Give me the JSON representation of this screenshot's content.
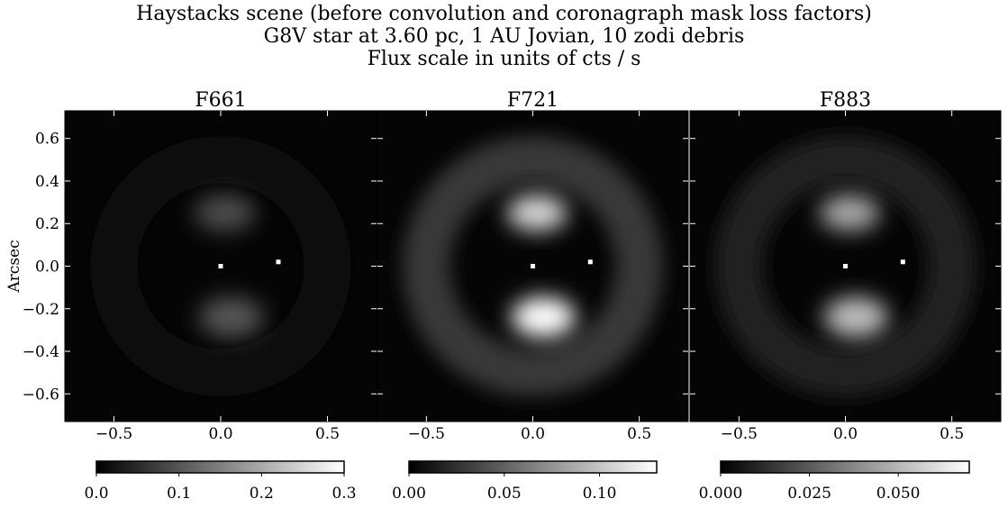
{
  "suptitle": {
    "line1": "Haystacks scene (before convolution and coronagraph mask loss factors)",
    "line2": "G8V star at 3.60 pc, 1 AU Jovian, 10 zodi debris",
    "line3": "Flux scale in units of cts / s"
  },
  "colors": {
    "colormap": [
      "#000000",
      "#ffffff"
    ],
    "axis": "#000000",
    "marker": "#ffffff"
  },
  "chart_data": [
    {
      "type": "heatmap",
      "title": "F661",
      "ylabel": "Arcsec",
      "xlim": [
        -0.73,
        0.73
      ],
      "ylim": [
        -0.73,
        0.73
      ],
      "xticks": [
        "−0.5",
        "0.0",
        "0.5"
      ],
      "xtick_values": [
        -0.5,
        0.0,
        0.5
      ],
      "yticks": [
        "−0.6",
        "−0.4",
        "−0.2",
        "0.0",
        "0.2",
        "0.4",
        "0.6"
      ],
      "ytick_values": [
        -0.6,
        -0.4,
        -0.2,
        0.0,
        0.2,
        0.4,
        0.6
      ],
      "sources": [
        {
          "name": "star",
          "x": 0.0,
          "y": 0.0
        },
        {
          "name": "planet",
          "x": 0.27,
          "y": 0.02
        }
      ],
      "features": {
        "upper_lobe_peak": 0.09,
        "lower_lobe_peak": 0.1,
        "ring_level": 0.01
      },
      "colorbar": {
        "range": [
          0.0,
          0.3
        ],
        "ticks": [
          "0.0",
          "0.1",
          "0.2",
          "0.3"
        ],
        "tick_values": [
          0.0,
          0.1,
          0.2,
          0.3
        ]
      }
    },
    {
      "type": "heatmap",
      "title": "F721",
      "xlim": [
        -0.73,
        0.73
      ],
      "ylim": [
        -0.73,
        0.73
      ],
      "xticks": [
        "−0.5",
        "0.0",
        "0.5"
      ],
      "xtick_values": [
        -0.5,
        0.0,
        0.5
      ],
      "sources": [
        {
          "name": "star",
          "x": 0.0,
          "y": 0.0
        },
        {
          "name": "planet",
          "x": 0.27,
          "y": 0.02
        }
      ],
      "features": {
        "upper_lobe_peak": 0.11,
        "lower_lobe_peak": 0.13,
        "ring_level": 0.028
      },
      "colorbar": {
        "range": [
          0.0,
          0.13
        ],
        "ticks": [
          "0.00",
          "0.05",
          "0.10"
        ],
        "tick_values": [
          0.0,
          0.05,
          0.1
        ]
      }
    },
    {
      "type": "heatmap",
      "title": "F883",
      "xlim": [
        -0.73,
        0.73
      ],
      "ylim": [
        -0.73,
        0.73
      ],
      "xticks": [
        "−0.5",
        "0.0",
        "0.5"
      ],
      "xtick_values": [
        -0.5,
        0.0,
        0.5
      ],
      "sources": [
        {
          "name": "star",
          "x": 0.0,
          "y": 0.0
        },
        {
          "name": "planet",
          "x": 0.27,
          "y": 0.02
        }
      ],
      "features": {
        "upper_lobe_peak": 0.046,
        "lower_lobe_peak": 0.052,
        "ring_level": 0.01
      },
      "colorbar": {
        "range": [
          0.0,
          0.07
        ],
        "ticks": [
          "0.000",
          "0.025",
          "0.050"
        ],
        "tick_values": [
          0.0,
          0.025,
          0.05
        ]
      }
    }
  ]
}
